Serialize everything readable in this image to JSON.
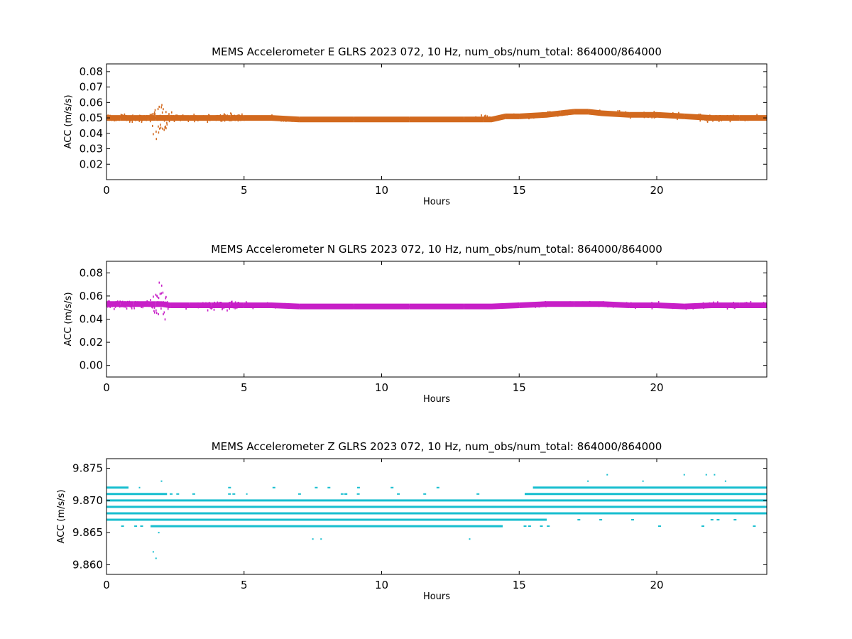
{
  "chart_data": [
    {
      "type": "scatter",
      "title": "MEMS Accelerometer E GLRS 2023 072, 10 Hz, num_obs/num_total: 864000/864000",
      "xlabel": "Hours",
      "ylabel": "ACC (m/s/s)",
      "xlim": [
        0,
        24
      ],
      "ylim": [
        0.01,
        0.085
      ],
      "xticks": [
        0,
        5,
        10,
        15,
        20
      ],
      "yticks": [
        0.02,
        0.03,
        0.04,
        0.05,
        0.06,
        0.07,
        0.08
      ],
      "ytick_decimals": 2,
      "color": "#d2691e",
      "grid": false,
      "series": [
        {
          "x": [
            0,
            0.5,
            1,
            1.5,
            1.8,
            2,
            2.3,
            3,
            4,
            4.5,
            5,
            6,
            7,
            8,
            9,
            10,
            11,
            12,
            13,
            13.7,
            14,
            14.5,
            15,
            16,
            16.5,
            17,
            17.5,
            18,
            19,
            20,
            21,
            22,
            23,
            24
          ],
          "y": [
            0.05,
            0.05,
            0.05,
            0.05,
            0.05,
            0.05,
            0.05,
            0.05,
            0.05,
            0.05,
            0.05,
            0.05,
            0.049,
            0.049,
            0.049,
            0.049,
            0.049,
            0.049,
            0.049,
            0.049,
            0.049,
            0.051,
            0.051,
            0.052,
            0.053,
            0.054,
            0.054,
            0.053,
            0.052,
            0.052,
            0.051,
            0.05,
            0.05,
            0.05
          ],
          "spread": [
            0.004,
            0.004,
            0.003,
            0.003,
            0.02,
            0.02,
            0.004,
            0.002,
            0.003,
            0.005,
            0.002,
            0.002,
            0.001,
            0.001,
            0.001,
            0.001,
            0.001,
            0.001,
            0.001,
            0.003,
            0.001,
            0.001,
            0.002,
            0.002,
            0.002,
            0.001,
            0.001,
            0.002,
            0.002,
            0.002,
            0.002,
            0.003,
            0.002,
            0.002
          ]
        }
      ]
    },
    {
      "type": "scatter",
      "title": "MEMS Accelerometer N GLRS 2023 072, 10 Hz, num_obs/num_total: 864000/864000",
      "xlabel": "Hours",
      "ylabel": "ACC (m/s/s)",
      "xlim": [
        0,
        24
      ],
      "ylim": [
        -0.01,
        0.09
      ],
      "xticks": [
        0,
        5,
        10,
        15,
        20
      ],
      "yticks": [
        0.0,
        0.02,
        0.04,
        0.06,
        0.08
      ],
      "ytick_decimals": 2,
      "color": "#c71fc7",
      "grid": false,
      "series": [
        {
          "x": [
            0,
            0.5,
            1,
            1.5,
            1.8,
            2,
            2.3,
            3,
            3.8,
            4.5,
            5,
            6,
            7,
            8,
            9,
            10,
            11,
            12,
            13,
            14,
            15,
            16,
            17,
            18,
            19,
            20,
            21,
            22,
            23,
            24
          ],
          "y": [
            0.053,
            0.053,
            0.053,
            0.053,
            0.053,
            0.053,
            0.052,
            0.052,
            0.052,
            0.052,
            0.052,
            0.052,
            0.051,
            0.051,
            0.051,
            0.051,
            0.051,
            0.051,
            0.051,
            0.051,
            0.052,
            0.053,
            0.053,
            0.053,
            0.052,
            0.052,
            0.051,
            0.052,
            0.052,
            0.052
          ],
          "spread": [
            0.005,
            0.005,
            0.004,
            0.003,
            0.02,
            0.02,
            0.003,
            0.003,
            0.005,
            0.006,
            0.003,
            0.002,
            0.001,
            0.001,
            0.001,
            0.001,
            0.001,
            0.001,
            0.001,
            0.001,
            0.002,
            0.002,
            0.002,
            0.002,
            0.002,
            0.003,
            0.002,
            0.003,
            0.003,
            0.003
          ]
        }
      ]
    },
    {
      "type": "scatter",
      "title": "MEMS Accelerometer Z GLRS 2023 072, 10 Hz, num_obs/num_total: 864000/864000",
      "xlabel": "Hours",
      "ylabel": "ACC (m/s/s)",
      "xlim": [
        0,
        24
      ],
      "ylim": [
        9.8585,
        9.8765
      ],
      "xticks": [
        0,
        5,
        10,
        15,
        20
      ],
      "yticks": [
        9.86,
        9.865,
        9.87,
        9.875
      ],
      "ytick_decimals": 3,
      "color": "#17becf",
      "grid": false,
      "levels": [
        {
          "y": 9.866,
          "segments": [
            [
              1.6,
              14.4
            ]
          ]
        },
        {
          "y": 9.867,
          "segments": [
            [
              0,
              16
            ]
          ]
        },
        {
          "y": 9.868,
          "segments": [
            [
              0,
              24
            ]
          ]
        },
        {
          "y": 9.869,
          "segments": [
            [
              0,
              24
            ]
          ]
        },
        {
          "y": 9.87,
          "segments": [
            [
              0,
              24
            ]
          ]
        },
        {
          "y": 9.871,
          "segments": [
            [
              0,
              2.2
            ],
            [
              15.2,
              24
            ]
          ]
        },
        {
          "y": 9.872,
          "segments": [
            [
              0,
              0.8
            ],
            [
              15.5,
              24
            ]
          ]
        }
      ],
      "outliers": [
        {
          "x": 1.7,
          "y": 9.862
        },
        {
          "x": 1.8,
          "y": 9.861
        },
        {
          "x": 1.9,
          "y": 9.865
        },
        {
          "x": 2.0,
          "y": 9.873
        },
        {
          "x": 1.2,
          "y": 9.872
        },
        {
          "x": 5.1,
          "y": 9.871
        },
        {
          "x": 7.5,
          "y": 9.864
        },
        {
          "x": 7.8,
          "y": 9.864
        },
        {
          "x": 13.2,
          "y": 9.864
        },
        {
          "x": 18.2,
          "y": 9.874
        },
        {
          "x": 21.0,
          "y": 9.874
        },
        {
          "x": 21.8,
          "y": 9.874
        },
        {
          "x": 22.1,
          "y": 9.874
        },
        {
          "x": 17.5,
          "y": 9.873
        },
        {
          "x": 19.5,
          "y": 9.873
        },
        {
          "x": 22.5,
          "y": 9.873
        }
      ]
    }
  ]
}
